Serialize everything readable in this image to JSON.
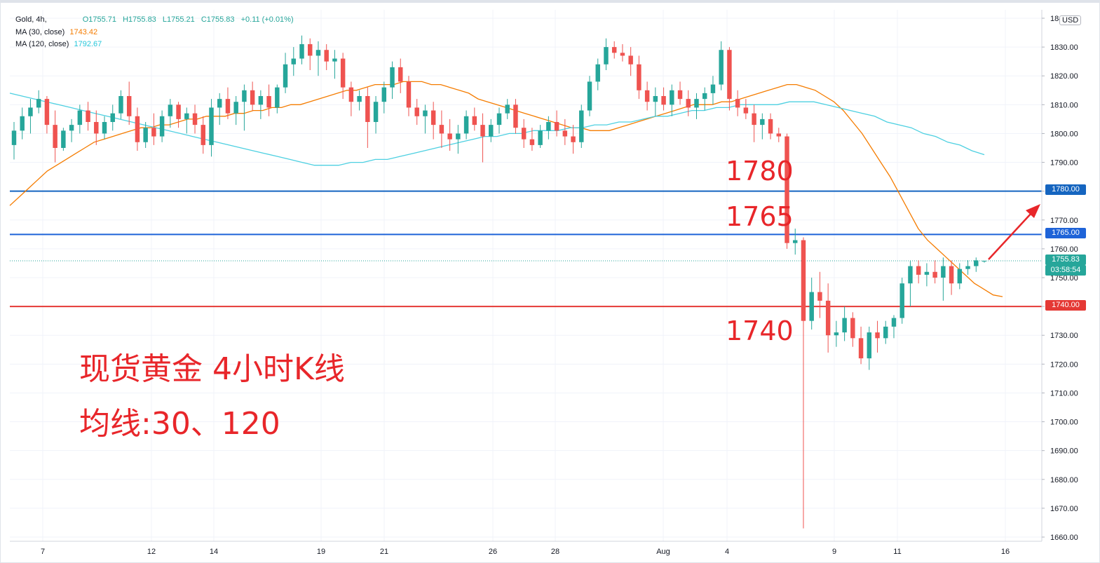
{
  "legend": {
    "symbol": "Gold, 4h,",
    "open": "O1755.71",
    "high": "H1755.83",
    "low": "L1755.21",
    "close": "C1755.83",
    "change": "+0.11 (+0.01%)",
    "ma30_label": "MA (30, close)",
    "ma30_value": "1743.42",
    "ma120_label": "MA (120, close)",
    "ma120_value": "1792.67"
  },
  "currency": "USD",
  "colors": {
    "up": "#26a69a",
    "down": "#ef5350",
    "ma30": "#f57c00",
    "ma120": "#4dd0e1",
    "blue_line": "#1565c0",
    "red_line": "#e53935",
    "annotation": "#e8262a"
  },
  "annotations": {
    "level_1780": "1780",
    "level_1765": "1765",
    "level_1740": "1740",
    "title_line1": "现货黄金 4小时K线",
    "title_line2": "均线:30、120"
  },
  "price_tags": {
    "p1780": "1780.00",
    "p1765": "1765.00",
    "last_price": "1755.83",
    "countdown": "03:58:54",
    "p1740": "1740.00"
  },
  "chart_data": {
    "type": "candlestick",
    "title": "",
    "y_axis": {
      "min": 1660,
      "max": 1840,
      "ticks": [
        1660,
        1670,
        1680,
        1690,
        1700,
        1710,
        1720,
        1730,
        1740,
        1750,
        1760,
        1770,
        1780,
        1790,
        1800,
        1810,
        1820,
        1830,
        1840
      ],
      "tick_labels": [
        "1660.00",
        "1670.00",
        "1680.00",
        "1690.00",
        "1700.00",
        "1710.00",
        "1720.00",
        "1730.00",
        "1740.00",
        "1750.00",
        "1760.00",
        "1770.00",
        "1780.00",
        "1790.00",
        "1800.00",
        "1810.00",
        "1820.00",
        "1830.00",
        "1840.00"
      ]
    },
    "x_axis": {
      "tick_labels": [
        "7",
        "12",
        "14",
        "19",
        "21",
        "26",
        "28",
        "Aug",
        "4",
        "9",
        "11",
        "16"
      ]
    },
    "horizontal_levels": [
      {
        "price": 1780,
        "label": "1780.00",
        "color": "#1565c0"
      },
      {
        "price": 1765,
        "label": "1765.00",
        "color": "#1e63d8"
      },
      {
        "price": 1740,
        "label": "1740.00",
        "color": "#e53935"
      }
    ],
    "last_price": 1755.83,
    "ohlc": [
      [
        1796,
        1804,
        1791,
        1801
      ],
      [
        1801,
        1809,
        1798,
        1806
      ],
      [
        1806,
        1812,
        1800,
        1809
      ],
      [
        1809,
        1815,
        1807,
        1812
      ],
      [
        1812,
        1813,
        1800,
        1803
      ],
      [
        1803,
        1808,
        1790,
        1795
      ],
      [
        1795,
        1802,
        1794,
        1801
      ],
      [
        1801,
        1805,
        1797,
        1803
      ],
      [
        1803,
        1810,
        1800,
        1808
      ],
      [
        1808,
        1811,
        1801,
        1804
      ],
      [
        1804,
        1808,
        1796,
        1800
      ],
      [
        1800,
        1806,
        1798,
        1804
      ],
      [
        1804,
        1810,
        1801,
        1807
      ],
      [
        1807,
        1815,
        1805,
        1813
      ],
      [
        1813,
        1818,
        1803,
        1806
      ],
      [
        1806,
        1809,
        1794,
        1797
      ],
      [
        1797,
        1804,
        1795,
        1802
      ],
      [
        1802,
        1807,
        1796,
        1799
      ],
      [
        1799,
        1808,
        1797,
        1806
      ],
      [
        1806,
        1812,
        1802,
        1810
      ],
      [
        1810,
        1811,
        1802,
        1805
      ],
      [
        1805,
        1809,
        1800,
        1807
      ],
      [
        1807,
        1810,
        1800,
        1803
      ],
      [
        1803,
        1806,
        1793,
        1796
      ],
      [
        1796,
        1812,
        1792,
        1809
      ],
      [
        1809,
        1814,
        1803,
        1812
      ],
      [
        1812,
        1816,
        1805,
        1807
      ],
      [
        1807,
        1813,
        1803,
        1811
      ],
      [
        1811,
        1817,
        1801,
        1815
      ],
      [
        1815,
        1818,
        1808,
        1810
      ],
      [
        1810,
        1815,
        1805,
        1813
      ],
      [
        1813,
        1817,
        1806,
        1809
      ],
      [
        1809,
        1817,
        1807,
        1816
      ],
      [
        1816,
        1828,
        1814,
        1824
      ],
      [
        1824,
        1830,
        1820,
        1826
      ],
      [
        1826,
        1834,
        1824,
        1831
      ],
      [
        1831,
        1833,
        1822,
        1827
      ],
      [
        1827,
        1832,
        1820,
        1829
      ],
      [
        1829,
        1831,
        1822,
        1825
      ],
      [
        1825,
        1829,
        1819,
        1826
      ],
      [
        1826,
        1828,
        1812,
        1816
      ],
      [
        1816,
        1818,
        1806,
        1811
      ],
      [
        1811,
        1815,
        1808,
        1813
      ],
      [
        1813,
        1816,
        1795,
        1804
      ],
      [
        1804,
        1813,
        1800,
        1811
      ],
      [
        1811,
        1818,
        1807,
        1816
      ],
      [
        1816,
        1825,
        1812,
        1823
      ],
      [
        1823,
        1826,
        1814,
        1818
      ],
      [
        1818,
        1820,
        1806,
        1809
      ],
      [
        1809,
        1812,
        1803,
        1806
      ],
      [
        1806,
        1810,
        1800,
        1808
      ],
      [
        1808,
        1811,
        1798,
        1803
      ],
      [
        1803,
        1808,
        1795,
        1800
      ],
      [
        1800,
        1805,
        1794,
        1798
      ],
      [
        1798,
        1803,
        1793,
        1800
      ],
      [
        1800,
        1808,
        1798,
        1806
      ],
      [
        1806,
        1809,
        1801,
        1803
      ],
      [
        1803,
        1807,
        1790,
        1799
      ],
      [
        1799,
        1805,
        1797,
        1803
      ],
      [
        1803,
        1809,
        1800,
        1807
      ],
      [
        1807,
        1812,
        1805,
        1810
      ],
      [
        1810,
        1812,
        1800,
        1802
      ],
      [
        1802,
        1805,
        1795,
        1798
      ],
      [
        1798,
        1802,
        1794,
        1796
      ],
      [
        1796,
        1803,
        1795,
        1801
      ],
      [
        1801,
        1806,
        1798,
        1804
      ],
      [
        1804,
        1808,
        1799,
        1801
      ],
      [
        1801,
        1805,
        1796,
        1799
      ],
      [
        1799,
        1803,
        1793,
        1797
      ],
      [
        1797,
        1810,
        1795,
        1808
      ],
      [
        1808,
        1820,
        1806,
        1818
      ],
      [
        1818,
        1826,
        1815,
        1824
      ],
      [
        1824,
        1833,
        1822,
        1830
      ],
      [
        1830,
        1832,
        1826,
        1828
      ],
      [
        1828,
        1831,
        1825,
        1827
      ],
      [
        1827,
        1830,
        1820,
        1824
      ],
      [
        1824,
        1827,
        1812,
        1815
      ],
      [
        1815,
        1818,
        1808,
        1811
      ],
      [
        1811,
        1816,
        1806,
        1813
      ],
      [
        1813,
        1816,
        1808,
        1810
      ],
      [
        1810,
        1817,
        1806,
        1815
      ],
      [
        1815,
        1818,
        1810,
        1812
      ],
      [
        1812,
        1815,
        1806,
        1809
      ],
      [
        1809,
        1814,
        1805,
        1812
      ],
      [
        1812,
        1816,
        1808,
        1814
      ],
      [
        1814,
        1820,
        1810,
        1817
      ],
      [
        1817,
        1832,
        1815,
        1829
      ],
      [
        1829,
        1830,
        1808,
        1812
      ],
      [
        1812,
        1815,
        1806,
        1809
      ],
      [
        1809,
        1812,
        1805,
        1807
      ],
      [
        1807,
        1810,
        1797,
        1803
      ],
      [
        1803,
        1807,
        1798,
        1805
      ],
      [
        1805,
        1807,
        1798,
        1800
      ],
      [
        1800,
        1802,
        1797,
        1799
      ],
      [
        1799,
        1800,
        1760,
        1762
      ],
      [
        1762,
        1767,
        1758,
        1763
      ],
      [
        1763,
        1764,
        1663,
        1735
      ],
      [
        1735,
        1750,
        1732,
        1745
      ],
      [
        1745,
        1752,
        1736,
        1742
      ],
      [
        1742,
        1748,
        1724,
        1730
      ],
      [
        1730,
        1735,
        1726,
        1731
      ],
      [
        1731,
        1740,
        1728,
        1736
      ],
      [
        1736,
        1738,
        1726,
        1729
      ],
      [
        1729,
        1733,
        1720,
        1722
      ],
      [
        1722,
        1733,
        1718,
        1731
      ],
      [
        1731,
        1735,
        1724,
        1729
      ],
      [
        1729,
        1735,
        1727,
        1733
      ],
      [
        1733,
        1737,
        1729,
        1736
      ],
      [
        1736,
        1750,
        1734,
        1748
      ],
      [
        1748,
        1756,
        1740,
        1754
      ],
      [
        1754,
        1756,
        1748,
        1751
      ],
      [
        1751,
        1755,
        1747,
        1752
      ],
      [
        1752,
        1756,
        1748,
        1750
      ],
      [
        1750,
        1757,
        1742,
        1754
      ],
      [
        1754,
        1756,
        1744,
        1748
      ],
      [
        1748,
        1755,
        1746,
        1753
      ],
      [
        1753,
        1756,
        1751,
        1754
      ],
      [
        1754,
        1757,
        1752,
        1756
      ],
      [
        1755.71,
        1755.83,
        1755.21,
        1755.83
      ]
    ],
    "ma30": [
      1775,
      1778,
      1781,
      1784,
      1787,
      1789,
      1791,
      1793,
      1795,
      1797,
      1798,
      1799,
      1800,
      1801,
      1802,
      1802,
      1803,
      1803,
      1804,
      1805,
      1805,
      1806,
      1806,
      1806,
      1807,
      1807,
      1808,
      1808,
      1809,
      1809,
      1810,
      1810,
      1811,
      1812,
      1813,
      1814,
      1815,
      1815,
      1816,
      1817,
      1817,
      1817,
      1818,
      1818,
      1818,
      1817,
      1817,
      1816,
      1815,
      1814,
      1812,
      1811,
      1810,
      1809,
      1808,
      1807,
      1806,
      1805,
      1804,
      1803,
      1802,
      1802,
      1801,
      1801,
      1801,
      1802,
      1803,
      1804,
      1805,
      1806,
      1807,
      1808,
      1809,
      1810,
      1810,
      1810,
      1811,
      1811,
      1812,
      1813,
      1814,
      1815,
      1816,
      1817,
      1817,
      1816,
      1815,
      1813,
      1811,
      1808,
      1804,
      1800,
      1795,
      1790,
      1785,
      1779,
      1773,
      1767,
      1763,
      1760,
      1757,
      1754,
      1751,
      1748,
      1746,
      1744,
      1743.42
    ],
    "ma120": [
      1814,
      1813,
      1812,
      1811,
      1810,
      1809,
      1808,
      1807,
      1806,
      1805,
      1804,
      1803,
      1802,
      1801,
      1800,
      1799,
      1798,
      1797,
      1796,
      1795,
      1794,
      1793,
      1792,
      1791,
      1790,
      1789,
      1789,
      1789,
      1790,
      1790,
      1791,
      1791,
      1792,
      1793,
      1794,
      1795,
      1796,
      1797,
      1798,
      1799,
      1799,
      1800,
      1800,
      1801,
      1801,
      1801,
      1802,
      1802,
      1803,
      1803,
      1804,
      1804,
      1805,
      1806,
      1806,
      1807,
      1808,
      1808,
      1809,
      1809,
      1810,
      1810,
      1810,
      1810,
      1811,
      1811,
      1811,
      1810,
      1809,
      1808,
      1807,
      1806,
      1804,
      1803,
      1802,
      1800,
      1799,
      1797,
      1796,
      1794,
      1792.67
    ]
  }
}
